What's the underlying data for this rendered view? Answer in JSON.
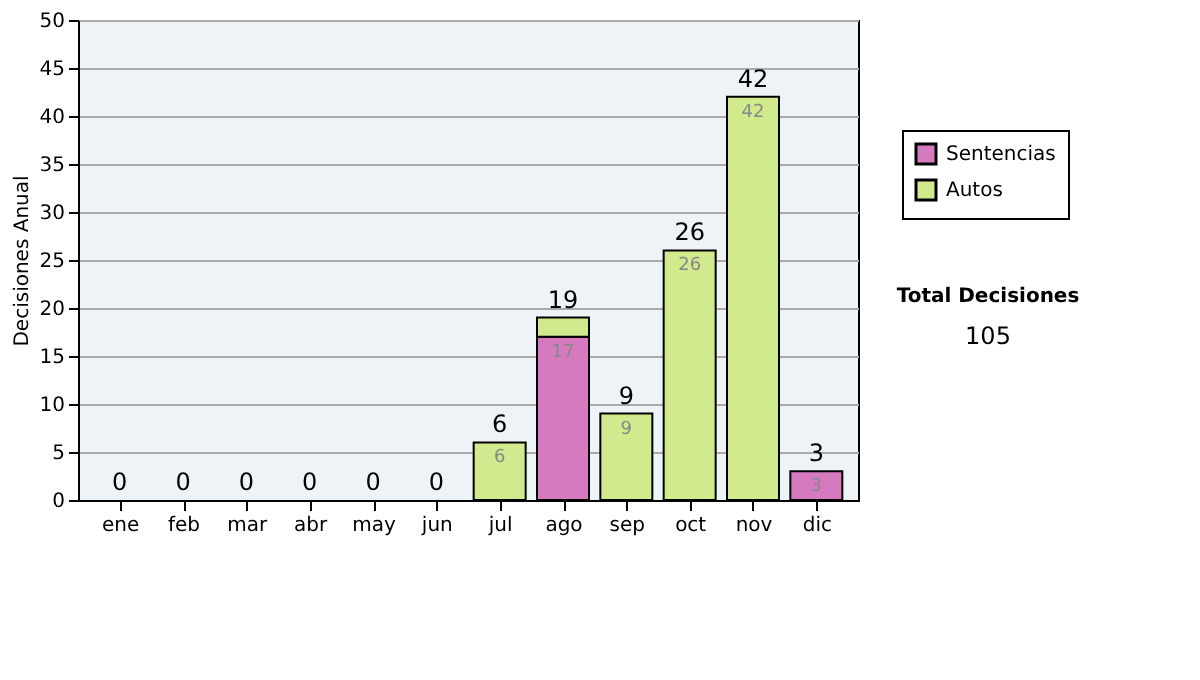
{
  "chart_data": {
    "type": "bar",
    "stacked": true,
    "ylabel": "Decisiones Anual",
    "categories": [
      "ene",
      "feb",
      "mar",
      "abr",
      "may",
      "jun",
      "jul",
      "ago",
      "sep",
      "oct",
      "nov",
      "dic"
    ],
    "series": [
      {
        "name": "Sentencias",
        "color": "#d67ac0",
        "values": [
          0,
          0,
          0,
          0,
          0,
          0,
          0,
          17,
          0,
          0,
          0,
          3
        ],
        "value_labels": [
          null,
          null,
          null,
          null,
          null,
          null,
          null,
          "17",
          null,
          null,
          null,
          "3"
        ]
      },
      {
        "name": "Autos",
        "color": "#d2ea8e",
        "values": [
          0,
          0,
          0,
          0,
          0,
          0,
          6,
          2,
          9,
          26,
          42,
          0
        ],
        "value_labels": [
          null,
          null,
          null,
          null,
          null,
          null,
          "6",
          null,
          "9",
          "26",
          "42",
          null
        ]
      }
    ],
    "totals": [
      "0",
      "0",
      "0",
      "0",
      "0",
      "0",
      "6",
      "19",
      "9",
      "26",
      "42",
      "3"
    ],
    "ylim": [
      0,
      50
    ],
    "yticks": [
      0,
      5,
      10,
      15,
      20,
      25,
      30,
      35,
      40,
      45,
      50
    ],
    "grid": "y",
    "legend": "right",
    "annotations": [
      "Total Decisiones",
      "105"
    ]
  }
}
